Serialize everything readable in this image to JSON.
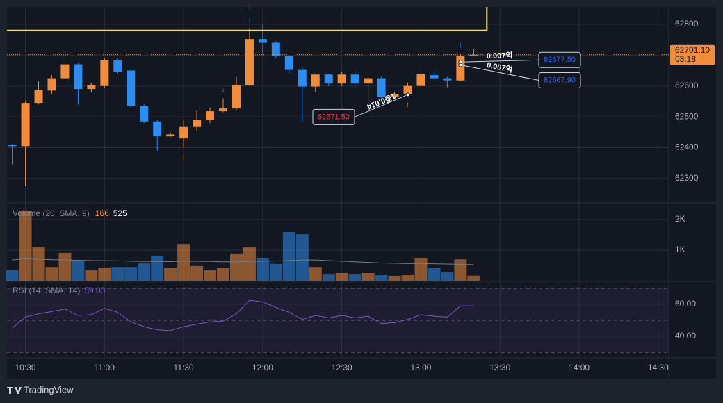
{
  "chart_data": [
    {
      "type": "candlestick",
      "up_color": "#f08c3c",
      "down_color": "#2d8cf0",
      "x": [
        "10:25",
        "10:30",
        "10:35",
        "10:40",
        "10:45",
        "10:50",
        "10:55",
        "11:00",
        "11:05",
        "11:10",
        "11:15",
        "11:20",
        "11:25",
        "11:30",
        "11:35",
        "11:40",
        "11:45",
        "11:50",
        "11:55",
        "12:00",
        "12:05",
        "12:10",
        "12:15",
        "12:20",
        "12:25",
        "12:30",
        "12:35",
        "12:40",
        "12:45",
        "12:50",
        "12:55",
        "13:00",
        "13:05",
        "13:10",
        "13:15",
        "13:20"
      ],
      "open": [
        62410,
        62405,
        62545,
        62585,
        62625,
        62670,
        62590,
        62600,
        62683,
        62650,
        62535,
        62485,
        62437,
        62430,
        62467,
        62490,
        62518,
        62527,
        62603,
        62752,
        62740,
        62697,
        62652,
        62598,
        62637,
        62608,
        62637,
        62608,
        62625,
        62565,
        62573,
        62600,
        62635,
        62625,
        62618,
        62700
      ],
      "high": [
        62412,
        62550,
        62615,
        62635,
        62700,
        62675,
        62610,
        62690,
        62690,
        62655,
        62540,
        62490,
        62450,
        62490,
        62520,
        62530,
        62560,
        62630,
        62785,
        62800,
        62745,
        62700,
        62660,
        62640,
        62640,
        62645,
        62650,
        62630,
        62630,
        62580,
        62610,
        62670,
        62650,
        62630,
        62705,
        62720
      ],
      "low": [
        62345,
        62275,
        62540,
        62575,
        62620,
        62540,
        62580,
        62595,
        62640,
        62530,
        62480,
        62390,
        62435,
        62400,
        62455,
        62480,
        62515,
        62520,
        62600,
        62700,
        62690,
        62640,
        62485,
        62580,
        62600,
        62600,
        62595,
        62550,
        62560,
        62560,
        62570,
        62595,
        62620,
        62595,
        62615,
        62698
      ],
      "close": [
        62405,
        62545,
        62588,
        62625,
        62670,
        62590,
        62603,
        62683,
        62645,
        62535,
        62485,
        62437,
        62443,
        62467,
        62490,
        62518,
        62527,
        62603,
        62752,
        62740,
        62697,
        62652,
        62598,
        62637,
        62608,
        62637,
        62608,
        62625,
        62565,
        62573,
        62600,
        62638,
        62625,
        62618,
        62697,
        62701.1
      ],
      "close_label": "62701.10",
      "countdown": "03:18",
      "level": 62780,
      "level_end": "13:25",
      "buy_signals": [
        "11:30",
        "12:55"
      ],
      "sell_signals": [
        "11:45",
        "11:55",
        "11:55",
        "13:15"
      ],
      "trades": [
        {
          "time": "13:15",
          "price": 62677.5,
          "label": "62677.50",
          "text": "0.007억",
          "color": "#2962ff"
        },
        {
          "time": "13:15",
          "price": 62667.9,
          "label": "62667.90",
          "text": "0.007억",
          "color": "#2962ff"
        },
        {
          "time": "12:55",
          "price": 62571.5,
          "label": "62571.50",
          "text": "1종0.014",
          "color": "#f23645"
        }
      ],
      "xlim": [
        "10:23",
        "14:34"
      ],
      "ylim": [
        62221,
        62856
      ],
      "yticks": [
        62300,
        62400,
        62500,
        62600,
        62700,
        62800
      ]
    },
    {
      "type": "bar",
      "title": "Volume (20, SMA, 9)",
      "values": [
        340,
        2295,
        1110,
        450,
        910,
        640,
        340,
        430,
        450,
        450,
        570,
        820,
        410,
        1200,
        480,
        340,
        410,
        890,
        1090,
        730,
        550,
        1590,
        1520,
        450,
        200,
        250,
        200,
        250,
        180,
        160,
        180,
        730,
        430,
        270,
        700,
        166
      ],
      "sma": [
        680,
        720,
        700,
        690,
        680,
        670,
        660,
        655,
        650,
        640,
        630,
        630,
        625,
        640,
        635,
        630,
        620,
        620,
        630,
        640,
        645,
        660,
        680,
        680,
        660,
        640,
        620,
        600,
        580,
        570,
        560,
        560,
        555,
        545,
        535,
        525
      ],
      "sma_color": "#787b86",
      "ylim": [
        0,
        2545
      ],
      "yticks": [
        {
          "value": 1000,
          "label": "1K"
        },
        {
          "value": 2000,
          "label": "2K"
        }
      ]
    },
    {
      "type": "line",
      "title": "RSI (14, SMA, 14)",
      "color": "#7e57c2",
      "values": [
        45,
        52,
        54,
        55.5,
        57,
        53,
        53.5,
        57.5,
        55,
        49,
        46,
        44,
        43.5,
        46,
        47.5,
        49,
        49.5,
        54,
        62.5,
        61.5,
        58,
        55,
        50.5,
        53,
        51.5,
        53,
        51.5,
        52.5,
        48,
        48.5,
        50.5,
        53.5,
        52.5,
        52,
        59,
        59.03
      ],
      "levels": [
        30,
        50,
        70
      ],
      "ylim": [
        26.5,
        74.3
      ],
      "yticks": [
        {
          "value": 40,
          "label": "40.00"
        },
        {
          "value": 60,
          "label": "60.00"
        }
      ],
      "xticks": [
        "10:30",
        "11:00",
        "11:30",
        "12:00",
        "12:30",
        "13:00",
        "13:30",
        "14:00",
        "14:30"
      ]
    }
  ],
  "footer": "TradingView"
}
